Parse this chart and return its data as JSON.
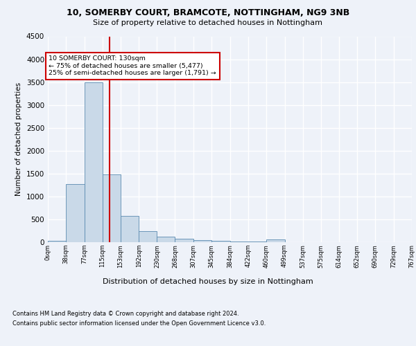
{
  "title1": "10, SOMERBY COURT, BRAMCOTE, NOTTINGHAM, NG9 3NB",
  "title2": "Size of property relative to detached houses in Nottingham",
  "xlabel": "Distribution of detached houses by size in Nottingham",
  "ylabel": "Number of detached properties",
  "footnote1": "Contains HM Land Registry data © Crown copyright and database right 2024.",
  "footnote2": "Contains public sector information licensed under the Open Government Licence v3.0.",
  "annotation_line1": "10 SOMERBY COURT: 130sqm",
  "annotation_line2": "← 75% of detached houses are smaller (5,477)",
  "annotation_line3": "25% of semi-detached houses are larger (1,791) →",
  "property_size": 130,
  "bin_edges": [
    0,
    38,
    77,
    115,
    153,
    192,
    230,
    268,
    307,
    345,
    384,
    422,
    460,
    499,
    537,
    575,
    614,
    652,
    690,
    729,
    767
  ],
  "bar_values": [
    30,
    1270,
    3500,
    1480,
    575,
    240,
    115,
    80,
    50,
    30,
    20,
    10,
    55,
    5,
    0,
    0,
    0,
    0,
    0,
    0
  ],
  "bar_color": "#c9d9e8",
  "bar_edge_color": "#5a8ab0",
  "vline_color": "#cc0000",
  "vline_x": 130,
  "ylim": [
    0,
    4500
  ],
  "yticks": [
    0,
    500,
    1000,
    1500,
    2000,
    2500,
    3000,
    3500,
    4000,
    4500
  ],
  "bg_color": "#eef2f9",
  "grid_color": "#ffffff",
  "annotation_box_color": "#cc0000"
}
